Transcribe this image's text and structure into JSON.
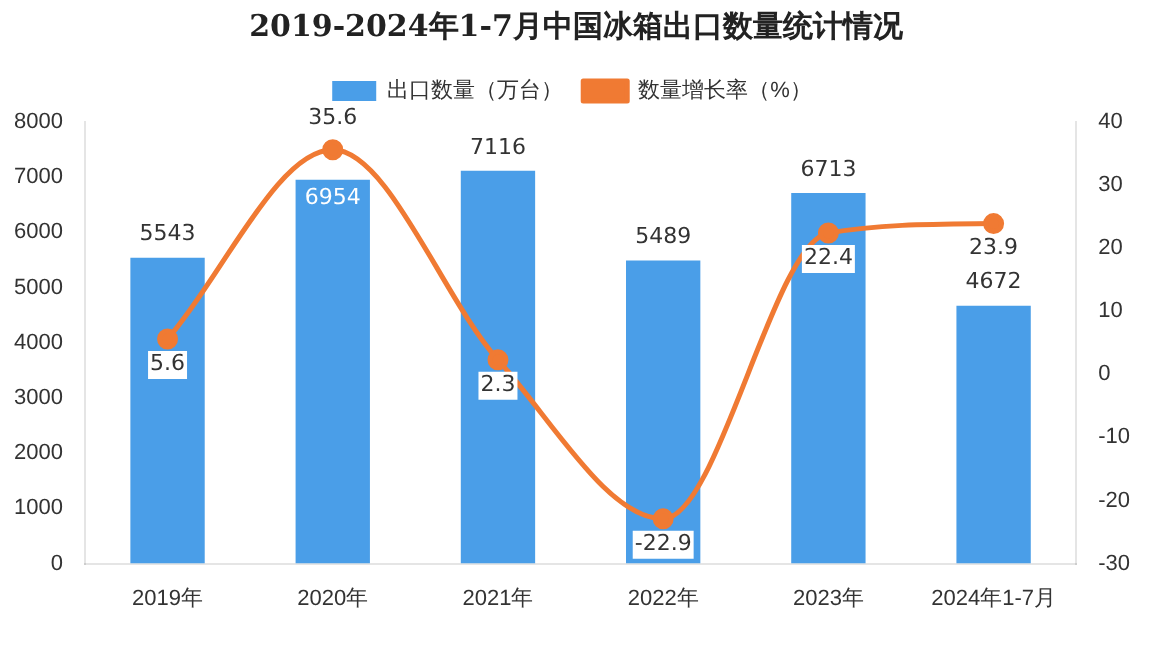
{
  "chart_data": {
    "type": "bar",
    "title": "2019-2024年1-7月中国冰箱出口数量统计情况",
    "categories": [
      "2019年",
      "2020年",
      "2021年",
      "2022年",
      "2023年",
      "2024年1-7月"
    ],
    "series": [
      {
        "name": "出口数量（万台）",
        "color": "#4a9ee8",
        "values": [
          5543,
          6954,
          7116,
          5489,
          6713,
          4672
        ]
      },
      {
        "name": "数量增长率（%）",
        "type": "line",
        "axis": "y2",
        "color": "#f07a33",
        "values": [
          5.6,
          35.6,
          2.3,
          -22.9,
          22.4,
          23.9
        ]
      }
    ],
    "ylim": [
      0,
      8000
    ],
    "yticks": [
      0,
      1000,
      2000,
      3000,
      4000,
      5000,
      6000,
      7000,
      8000
    ],
    "y2lim": [
      -30,
      40
    ],
    "y2ticks": [
      -30,
      -20,
      -10,
      0,
      10,
      20,
      30,
      40
    ],
    "legend": "top",
    "marker": "circle",
    "data_labels": true,
    "grid": false
  }
}
